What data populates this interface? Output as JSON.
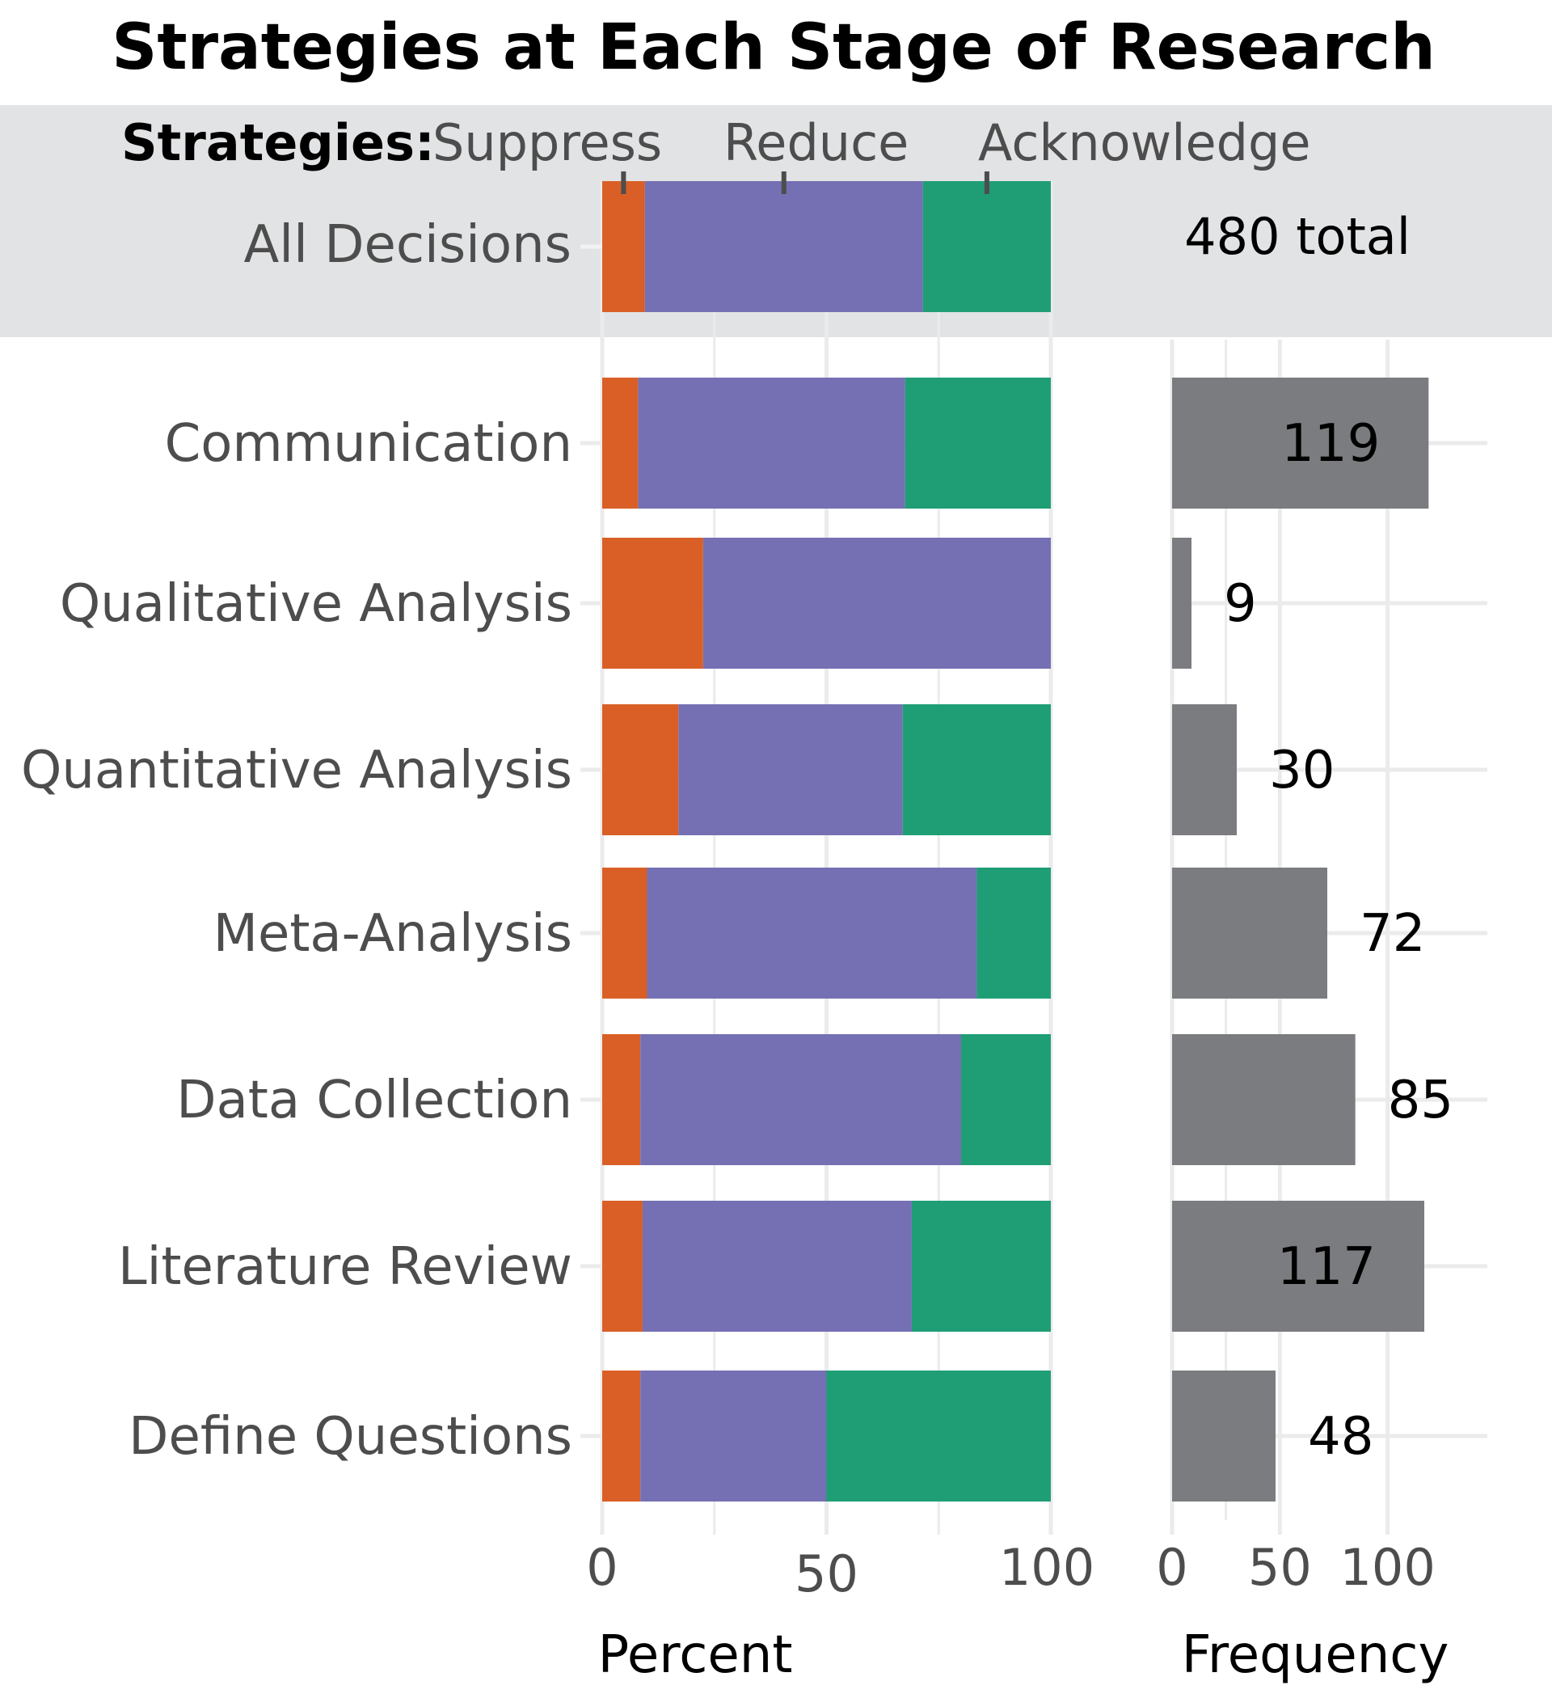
{
  "chart_data": {
    "type": "bar",
    "title": "Strategies at Each Stage of Research",
    "legend": {
      "heading": "Strategies:",
      "items": [
        {
          "name": "Suppress",
          "color": "#d95f27"
        },
        {
          "name": "Reduce",
          "color": "#7570b3"
        },
        {
          "name": "Acknowledge",
          "color": "#1f9e76"
        }
      ],
      "placement": "top"
    },
    "summary": {
      "category": "All Decisions",
      "suppress": 9.5,
      "reduce": 62,
      "acknowledge": 28.5,
      "total_label": "480 total"
    },
    "categories": [
      "Communication",
      "Qualitative Analysis",
      "Quantitative Analysis",
      "Meta-Analysis",
      "Data Collection",
      "Literature Review",
      "Define Questions"
    ],
    "percent_series": [
      {
        "name": "Suppress",
        "color": "#d95f27",
        "values": [
          8,
          22.5,
          17,
          10,
          8.5,
          9,
          8.5
        ]
      },
      {
        "name": "Reduce",
        "color": "#7570b3",
        "values": [
          59.5,
          77.5,
          50,
          73.5,
          71.5,
          60,
          41.5
        ]
      },
      {
        "name": "Acknowledge",
        "color": "#1f9e76",
        "values": [
          32.5,
          0,
          33,
          16.5,
          20,
          31,
          50
        ]
      }
    ],
    "frequency": {
      "values": [
        119,
        9,
        30,
        72,
        85,
        117,
        48
      ],
      "labels": [
        "119",
        "9",
        "30",
        "72",
        "85",
        "117",
        "48"
      ],
      "color": "#7b7c7f"
    },
    "percent_axis": {
      "title": "Percent",
      "range": [
        0,
        100
      ],
      "ticks": [
        "0",
        "50",
        "100"
      ]
    },
    "frequency_axis": {
      "title": "Frequency",
      "range": [
        0,
        120
      ],
      "ticks": [
        "0",
        "50",
        "100"
      ]
    },
    "grid": true,
    "summary_band_color": "#e2e3e4"
  }
}
